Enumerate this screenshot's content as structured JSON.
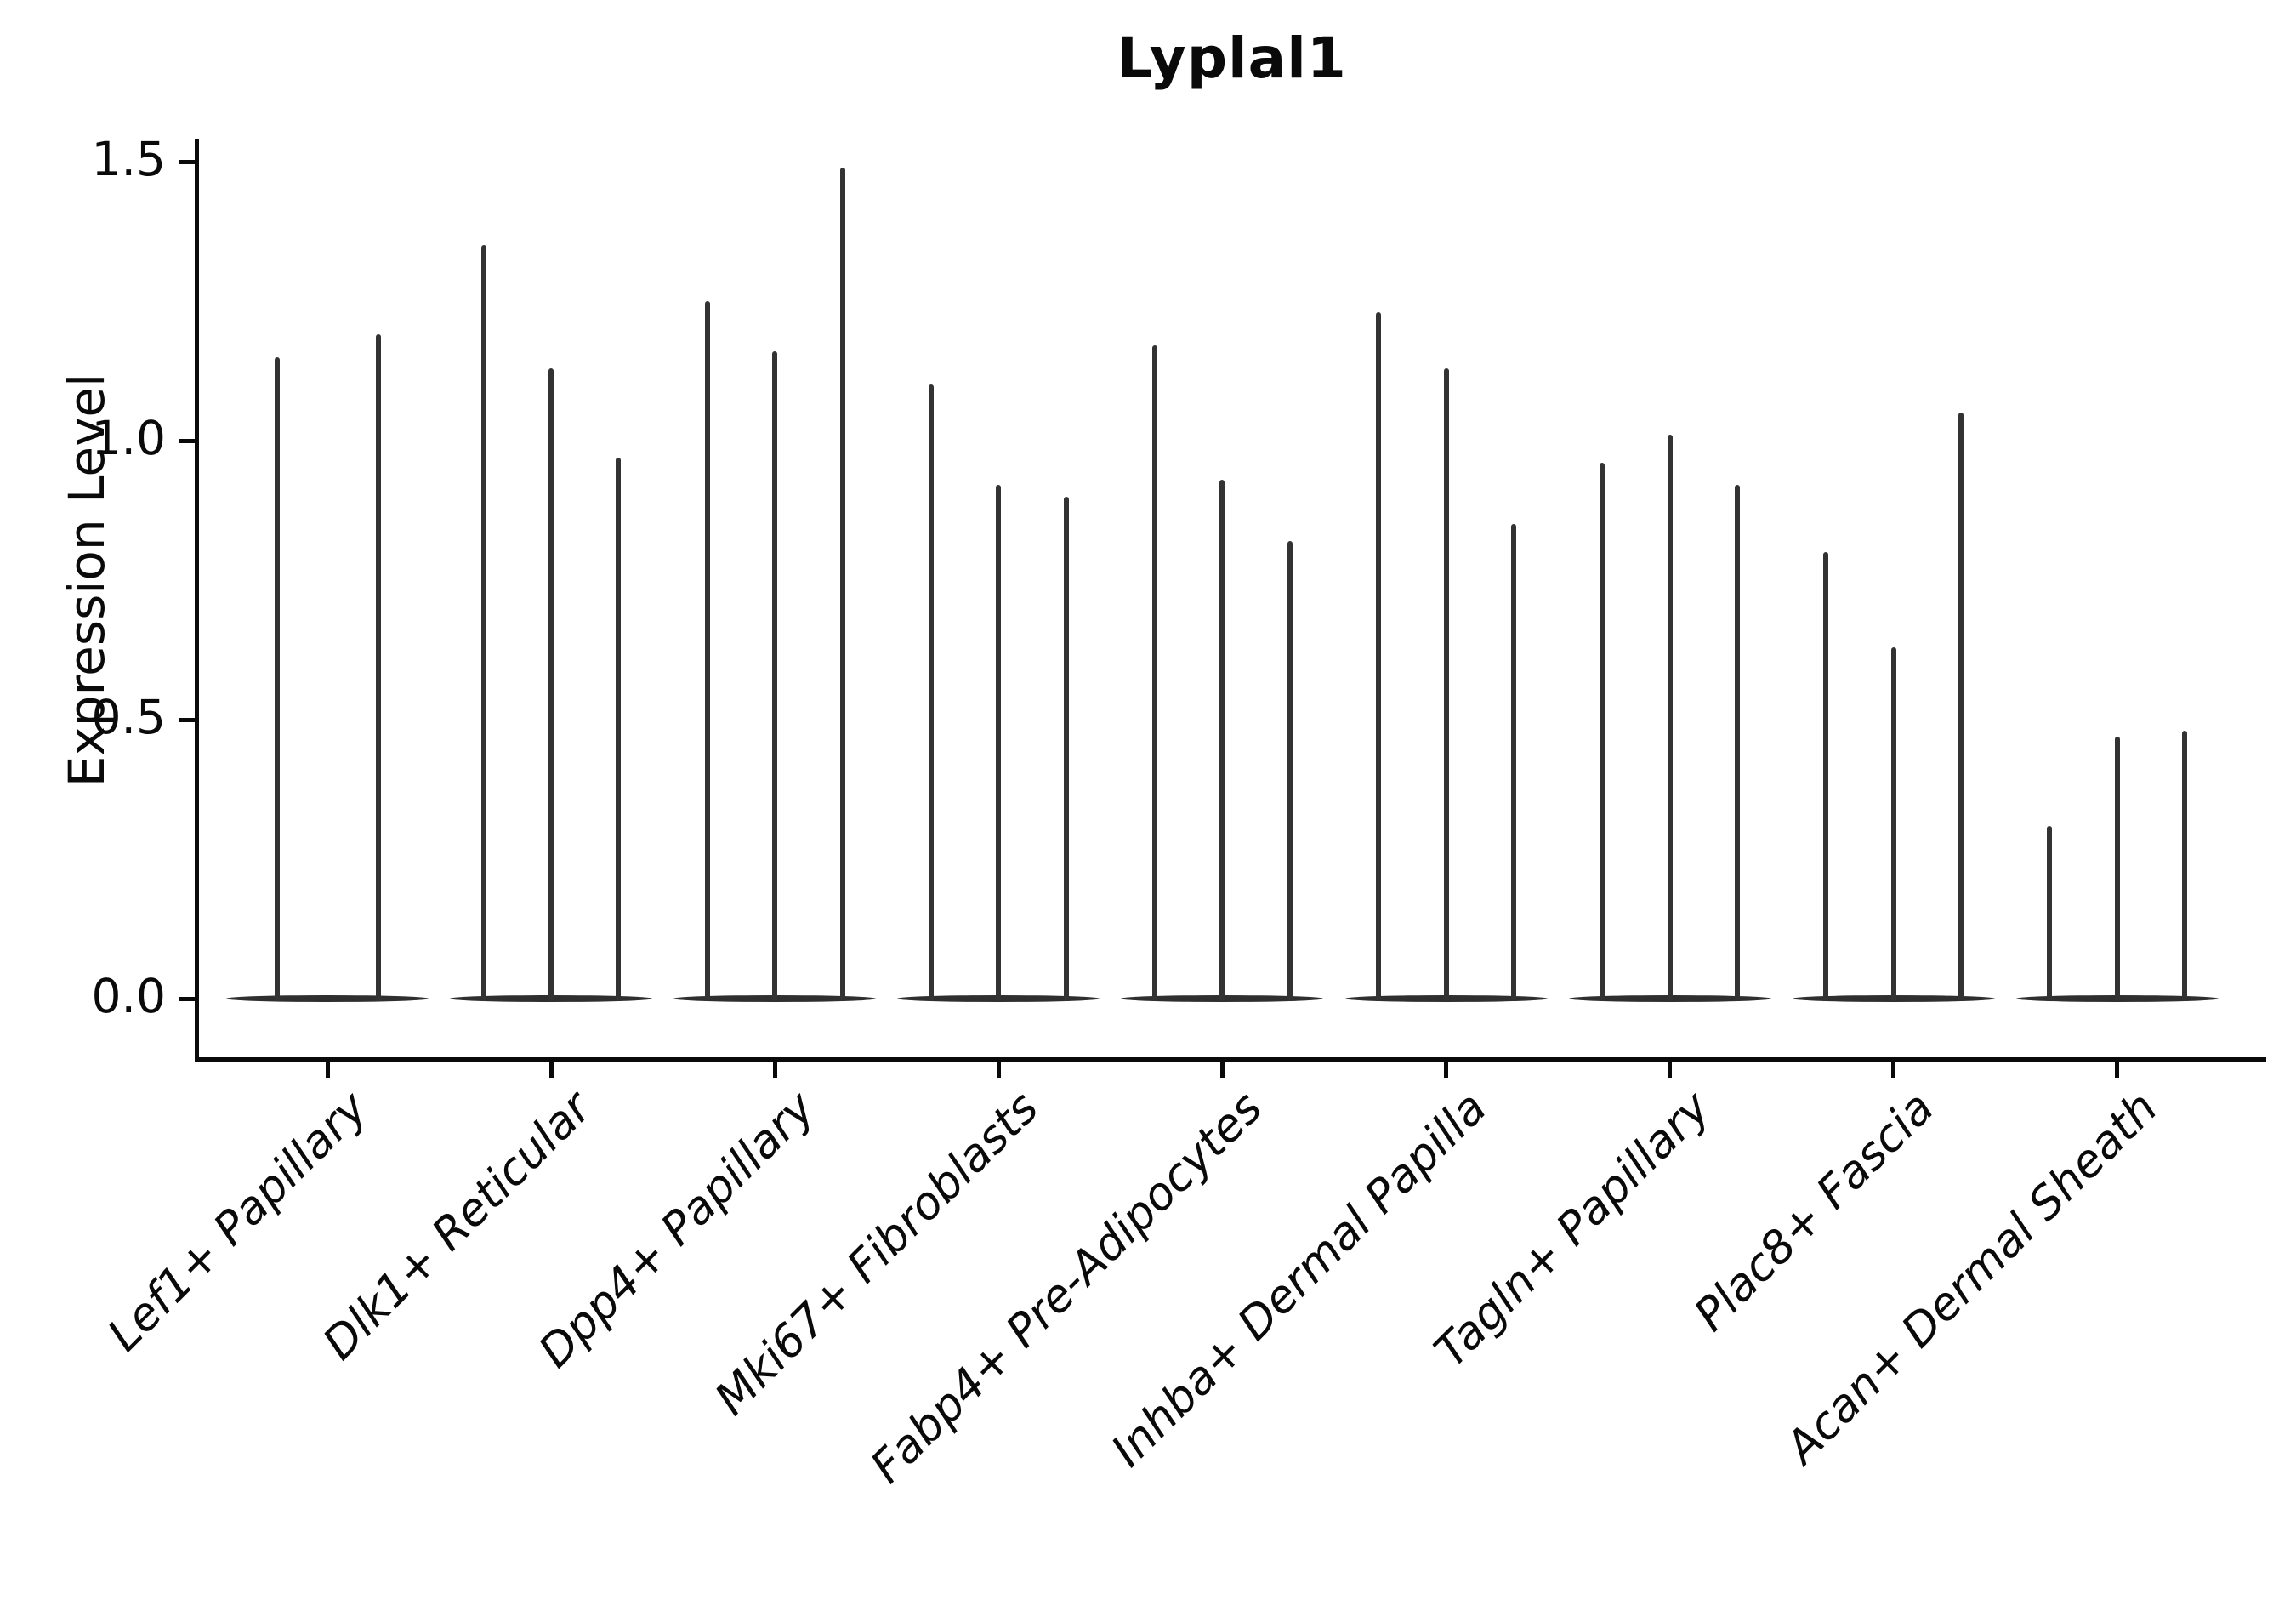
{
  "chart_data": {
    "type": "violin",
    "title": "Lyplal1",
    "ylabel": "Expression Level",
    "xlabel": "",
    "yticks": [
      0.0,
      0.5,
      1.0,
      1.5
    ],
    "ylim": [
      -0.07,
      1.58
    ],
    "grid": false,
    "legend": "none",
    "ink_color": "#0a0a0a",
    "violin_color": "#333333",
    "categories": [
      "Lef1+ Papillary",
      "Dlk1+ Reticular",
      "Dpp4+ Papillary",
      "Mki67+ Fibroblasts",
      "Fabp4+ Pre-Adipocytes",
      "Inhba+ Dermal Papilla",
      "Tagln+ Papillary",
      "Plac8+ Fascia",
      "Acan+ Dermal Sheath"
    ],
    "groups": [
      {
        "category": "Lef1+ Papillary",
        "violin_max_expression": [
          1.15,
          1.19
        ]
      },
      {
        "category": "Dlk1+ Reticular",
        "violin_max_expression": [
          1.35,
          1.13,
          0.97
        ]
      },
      {
        "category": "Dpp4+ Papillary",
        "violin_max_expression": [
          1.25,
          1.16,
          1.49
        ]
      },
      {
        "category": "Mki67+ Fibroblasts",
        "violin_max_expression": [
          1.1,
          0.92,
          0.9
        ]
      },
      {
        "category": "Fabp4+ Pre-Adipocytes",
        "violin_max_expression": [
          1.17,
          0.93,
          0.82
        ]
      },
      {
        "category": "Inhba+ Dermal Papilla",
        "violin_max_expression": [
          1.23,
          1.13,
          0.85
        ]
      },
      {
        "category": "Tagln+ Papillary",
        "violin_max_expression": [
          0.96,
          1.01,
          0.92
        ]
      },
      {
        "category": "Plac8+ Fascia",
        "violin_max_expression": [
          0.8,
          0.63,
          1.05
        ]
      },
      {
        "category": "Acan+ Dermal Sheath",
        "violin_max_expression": [
          0.31,
          0.47,
          0.48
        ]
      }
    ],
    "description": "Violin plot of Lyplal1 expression; most cells at 0 (flat violin bases) with thin spikes to per-violin maxima; 2 violins in first category, 3 in all others"
  }
}
